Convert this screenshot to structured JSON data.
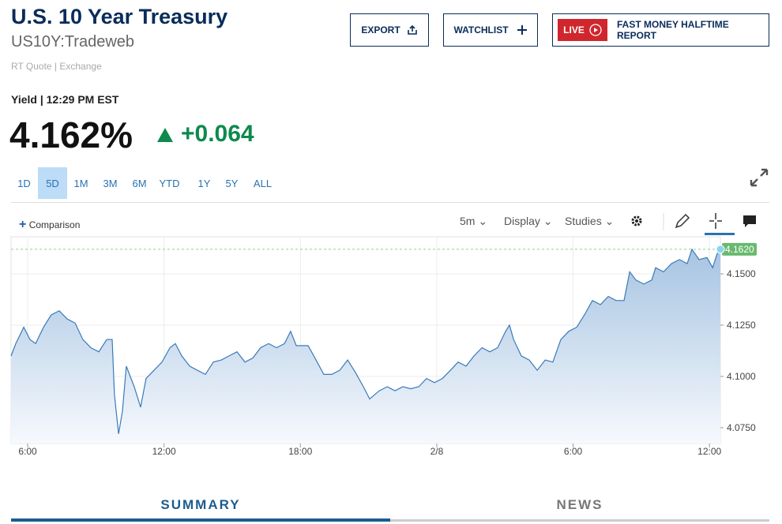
{
  "header": {
    "title": "U.S. 10 Year Treasury",
    "symbol": "US10Y:Tradeweb",
    "source": "RT Quote | Exchange"
  },
  "buttons": {
    "export": "EXPORT",
    "watchlist": "WATCHLIST",
    "live": "LIVE",
    "program": "FAST MONEY HALFTIME REPORT"
  },
  "quote": {
    "label": "Yield | 12:29 PM EST",
    "last": "4.162%",
    "change": "+0.064"
  },
  "ranges": [
    "1D",
    "5D",
    "1M",
    "3M",
    "6M",
    "YTD",
    "1Y",
    "5Y",
    "ALL"
  ],
  "toolbar": {
    "comparison": "Comparison",
    "interval": "5m",
    "display": "Display",
    "studies": "Studies"
  },
  "chart_data": {
    "type": "area",
    "color": "#3a7ab8",
    "grid": true,
    "x": [
      5.27,
      5.48,
      5.83,
      6.1,
      6.35,
      6.7,
      7.04,
      7.39,
      7.74,
      8.09,
      8.43,
      8.78,
      9.13,
      9.48,
      9.72,
      9.82,
      10.0,
      10.17,
      10.34,
      10.69,
      10.97,
      11.21,
      11.56,
      11.91,
      12.26,
      12.5,
      12.78,
      13.13,
      13.47,
      13.82,
      14.17,
      14.52,
      14.86,
      15.21,
      15.56,
      15.91,
      16.25,
      16.6,
      16.95,
      17.3,
      17.57,
      17.82,
      18.34,
      18.69,
      19.03,
      19.38,
      19.73,
      20.08,
      20.42,
      20.77,
      21.05,
      21.47,
      21.82,
      22.16,
      22.51,
      22.86,
      23.21,
      23.55,
      23.9,
      24.25,
      24.6,
      24.94,
      25.29,
      25.64,
      25.99,
      26.33,
      26.68,
      27.03,
      27.2,
      27.38,
      27.72,
      28.07,
      28.42,
      28.77,
      29.11,
      29.46,
      29.81,
      30.16,
      30.5,
      30.85,
      31.2,
      31.55,
      31.89,
      32.24,
      32.49,
      32.76,
      33.11,
      33.46,
      33.63,
      33.98,
      34.33,
      34.68,
      35.02,
      35.23,
      35.54,
      35.89,
      36.14,
      36.34,
      36.48
    ],
    "values": [
      4.11,
      4.116,
      4.124,
      4.118,
      4.116,
      4.124,
      4.13,
      4.132,
      4.128,
      4.126,
      4.118,
      4.114,
      4.112,
      4.118,
      4.118,
      4.091,
      4.072,
      4.083,
      4.105,
      4.095,
      4.085,
      4.099,
      4.103,
      4.107,
      4.114,
      4.116,
      4.11,
      4.105,
      4.103,
      4.101,
      4.107,
      4.108,
      4.11,
      4.112,
      4.107,
      4.109,
      4.114,
      4.116,
      4.114,
      4.116,
      4.122,
      4.115,
      4.115,
      4.108,
      4.101,
      4.101,
      4.103,
      4.108,
      4.102,
      4.095,
      4.089,
      4.093,
      4.095,
      4.093,
      4.095,
      4.094,
      4.095,
      4.099,
      4.097,
      4.099,
      4.103,
      4.107,
      4.105,
      4.11,
      4.114,
      4.112,
      4.114,
      4.122,
      4.125,
      4.118,
      4.11,
      4.108,
      4.103,
      4.108,
      4.107,
      4.118,
      4.122,
      4.124,
      4.13,
      4.137,
      4.135,
      4.139,
      4.137,
      4.137,
      4.151,
      4.147,
      4.145,
      4.147,
      4.153,
      4.151,
      4.155,
      4.157,
      4.155,
      4.162,
      4.157,
      4.158,
      4.153,
      4.16,
      4.162
    ],
    "xlim": [
      5.27,
      36.48
    ],
    "xticks": [
      {
        "value": 6,
        "label": "6:00"
      },
      {
        "value": 12,
        "label": "12:00"
      },
      {
        "value": 18,
        "label": "18:00"
      },
      {
        "value": 24,
        "label": "2/8"
      },
      {
        "value": 30,
        "label": "6:00"
      },
      {
        "value": 36,
        "label": "12:00"
      }
    ],
    "ylim": [
      4.0673,
      4.1681
    ],
    "yticks": [
      {
        "value": 4.075,
        "label": "4.0750"
      },
      {
        "value": 4.1,
        "label": "4.1000"
      },
      {
        "value": 4.125,
        "label": "4.1250"
      },
      {
        "value": 4.15,
        "label": "4.1500"
      }
    ],
    "last_value_label": "4.1620"
  },
  "tabs": [
    "SUMMARY",
    "NEWS"
  ]
}
